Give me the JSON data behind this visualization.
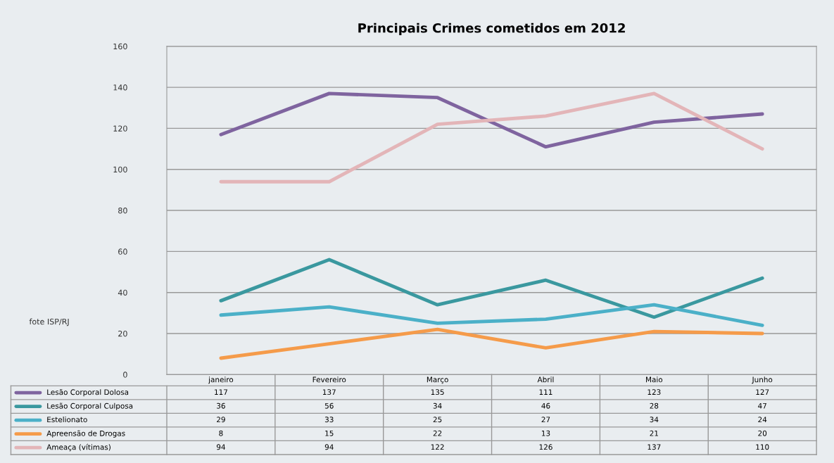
{
  "chart_data": {
    "type": "line",
    "title": "Principais Crimes cometidos em 2012",
    "categories": [
      "janeiro",
      "Fevereiro",
      "Março",
      "Abril",
      "Maio",
      "Junho"
    ],
    "series": [
      {
        "name": "Lesão Corporal Dolosa",
        "color": "#7f649f",
        "values": [
          117,
          137,
          135,
          111,
          123,
          127
        ]
      },
      {
        "name": "Lesão Corporal Culposa",
        "color": "#3a989f",
        "values": [
          36,
          56,
          34,
          46,
          28,
          47
        ]
      },
      {
        "name": "Estelionato",
        "color": "#4bb0c8",
        "values": [
          29,
          33,
          25,
          27,
          34,
          24
        ]
      },
      {
        "name": "Apreensão de Drogas",
        "color": "#f59b4a",
        "values": [
          8,
          15,
          22,
          13,
          21,
          20
        ]
      },
      {
        "name": "Ameaça (vítimas)",
        "color": "#e3b5b8",
        "values": [
          94,
          94,
          122,
          126,
          137,
          110
        ]
      }
    ],
    "ylim": [
      0,
      160
    ],
    "yticks": [
      0,
      20,
      40,
      60,
      80,
      100,
      120,
      140,
      160
    ],
    "grid": "y",
    "legend": "bottom",
    "data_labels": true,
    "marker": "none",
    "line_style": "solid",
    "annotations": [
      "fote ISP/RJ"
    ]
  }
}
